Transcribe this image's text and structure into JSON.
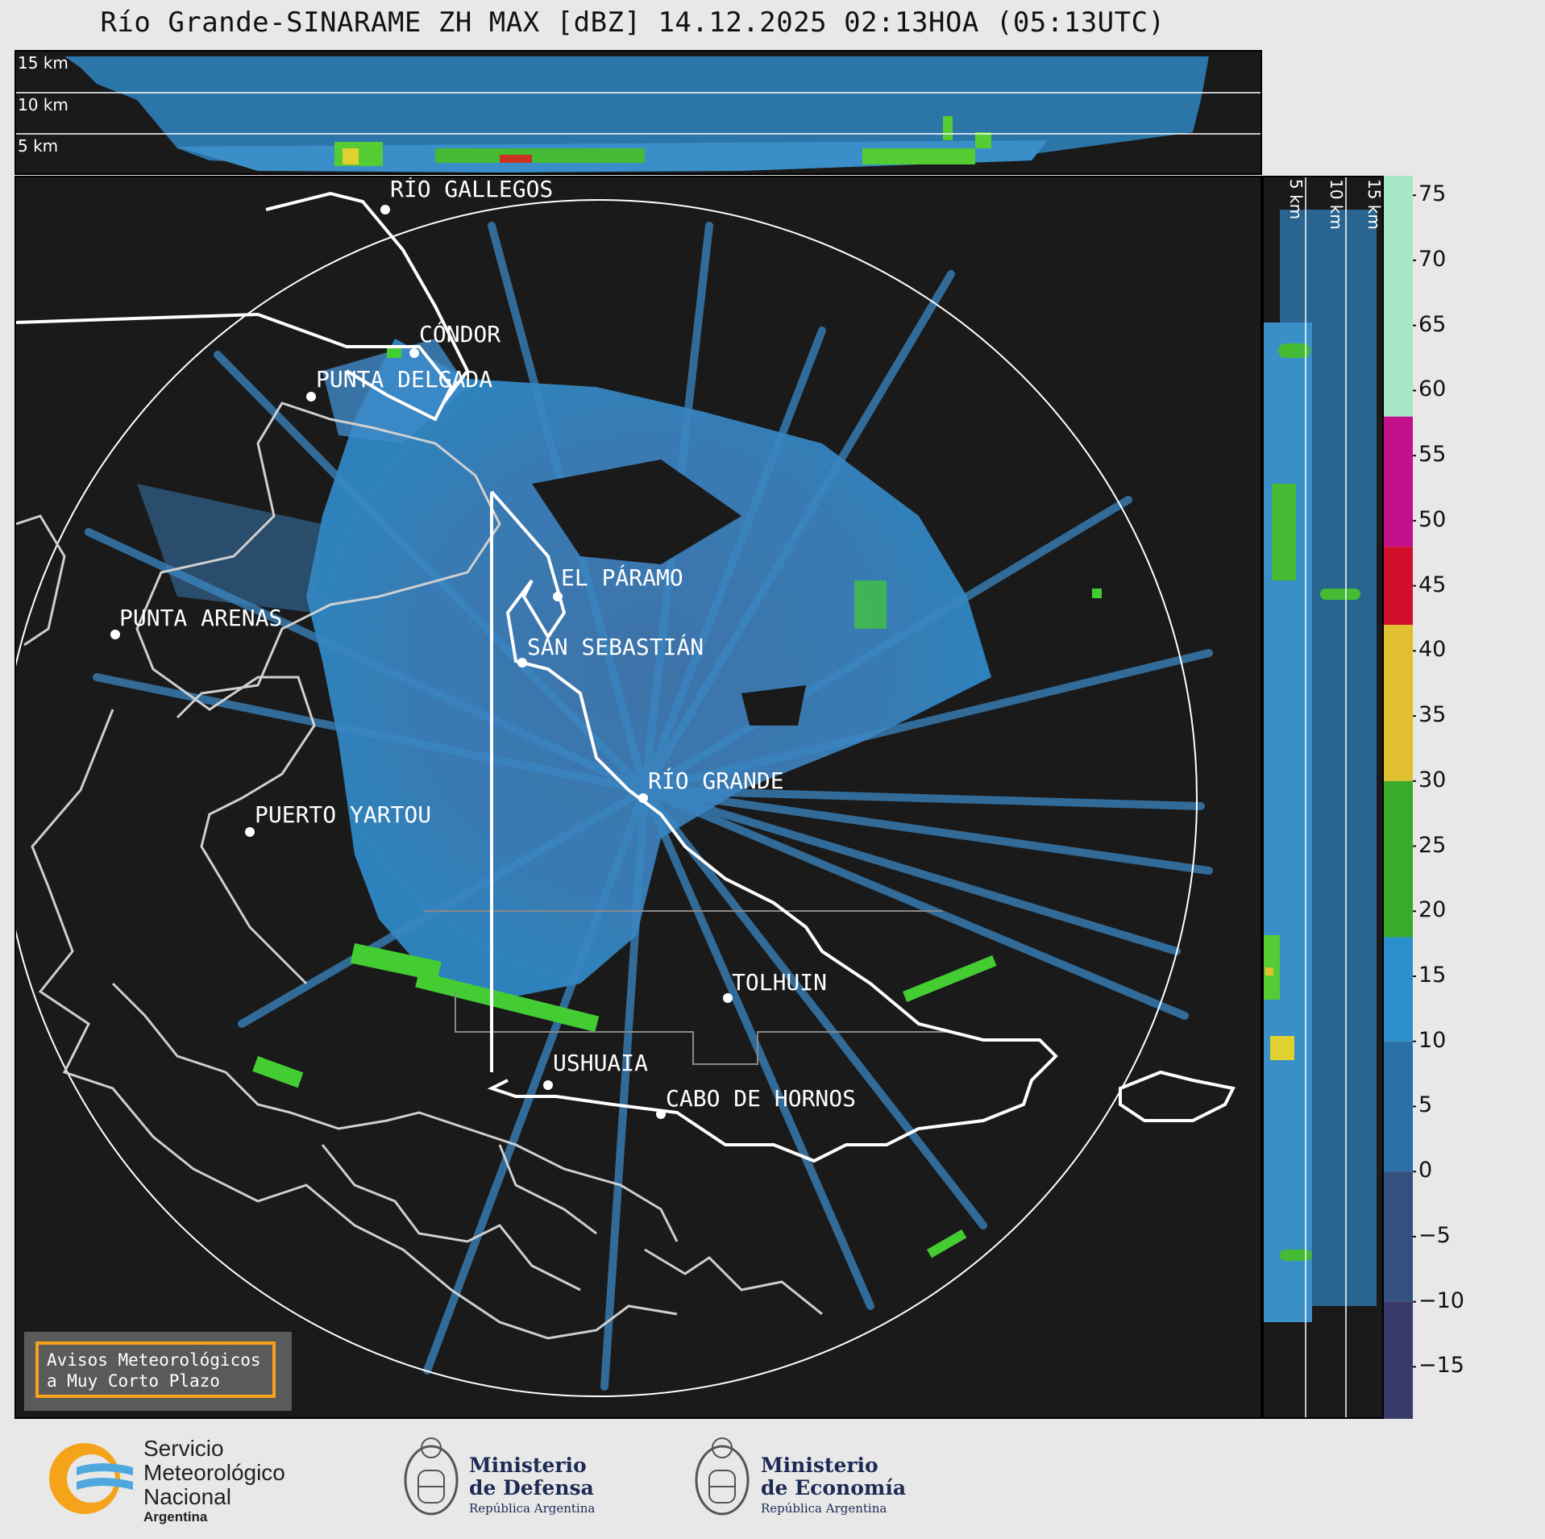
{
  "title": "Río Grande-SINARAME ZH MAX [dBZ] 14.12.2025 02:13HOA (05:13UTC)",
  "top_panel": {
    "heights": [
      "15 km",
      "10 km",
      "5 km"
    ]
  },
  "side_panel": {
    "heights": [
      "5 km",
      "10 km",
      "15 km"
    ]
  },
  "cities": [
    {
      "name": "RÍO GALLEGOS"
    },
    {
      "name": "CÓNDOR"
    },
    {
      "name": "PUNTA DELGADA"
    },
    {
      "name": "EL PÁRAMO"
    },
    {
      "name": "PUNTA ARENAS"
    },
    {
      "name": "SAN SEBASTIÁN"
    },
    {
      "name": "RÍO GRANDE"
    },
    {
      "name": "PUERTO YARTOU"
    },
    {
      "name": "TOLHUIN"
    },
    {
      "name": "USHUAIA"
    },
    {
      "name": "CABO DE HORNOS"
    }
  ],
  "colorbar": {
    "unit": "dBZ",
    "ticks": [
      "75",
      "70",
      "65",
      "60",
      "55",
      "50",
      "45",
      "40",
      "35",
      "30",
      "25",
      "20",
      "15",
      "10",
      "5",
      "0",
      "−5",
      "−10",
      "−15"
    ],
    "bands": [
      {
        "from": 58,
        "to": 76.5,
        "color": "#a8e8c8"
      },
      {
        "from": 48,
        "to": 58,
        "color": "#c2108a"
      },
      {
        "from": 42,
        "to": 48,
        "color": "#d0102a"
      },
      {
        "from": 30,
        "to": 42,
        "color": "#e0c030"
      },
      {
        "from": 18,
        "to": 30,
        "color": "#3aaa2a"
      },
      {
        "from": 10,
        "to": 18,
        "color": "#2a90cc"
      },
      {
        "from": 0,
        "to": 10,
        "color": "#2a70a8"
      },
      {
        "from": -10,
        "to": 0,
        "color": "#34507e"
      },
      {
        "from": -19,
        "to": -10,
        "color": "#3a3a6a"
      }
    ]
  },
  "legend_box": {
    "line1": "Avisos Meteorológicos",
    "line2": "a Muy Corto Plazo"
  },
  "logos": {
    "smn": {
      "line1": "Servicio",
      "line2": "Meteorológico",
      "line3": "Nacional",
      "line4": "Argentina"
    },
    "defensa": {
      "line1": "Ministerio",
      "line2": "de Defensa",
      "line3": "República Argentina"
    },
    "economia": {
      "line1": "Ministerio",
      "line2": "de Economía",
      "line3": "República Argentina"
    }
  }
}
